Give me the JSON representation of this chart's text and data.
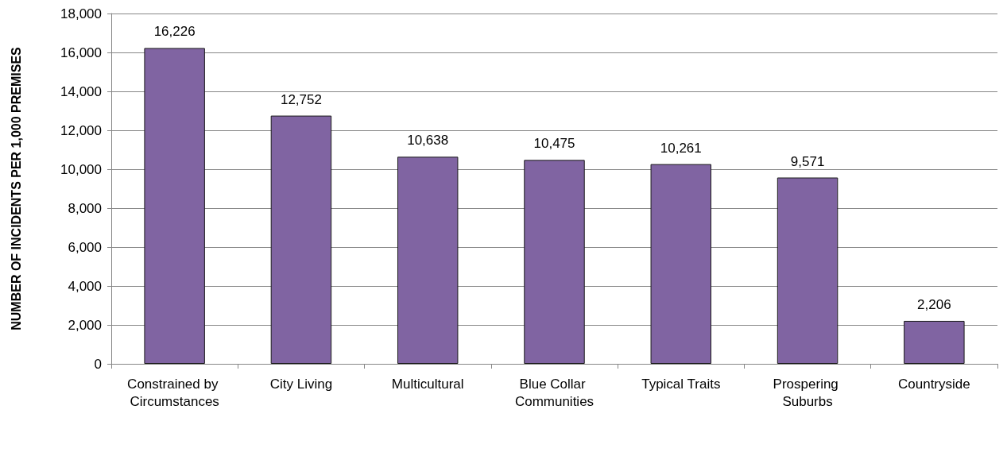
{
  "chart_data": {
    "type": "bar",
    "ylabel": "NUMBER OF INCIDENTS PER 1,000 PREMISES",
    "categories": [
      "Constrained by Circumstances",
      "City Living",
      "Multicultural",
      "Blue Collar Communities",
      "Typical Traits",
      "Prospering Suburbs",
      "Countryside"
    ],
    "values": [
      16226,
      12752,
      10638,
      10475,
      10261,
      9571,
      2206
    ],
    "value_labels": [
      "16,226",
      "12,752",
      "10,638",
      "10,475",
      "10,261",
      "9,571",
      "2,206"
    ],
    "color": "#8064a2",
    "ylim": [
      0,
      18000
    ],
    "yticks": [
      0,
      {
        "value": 2000,
        "label": "2,000"
      },
      {
        "value": 4000,
        "label": "4,000"
      },
      {
        "value": 6000,
        "label": "6,000"
      },
      {
        "value": 8000,
        "label": "8,000"
      },
      {
        "value": 10000,
        "label": "10,000"
      },
      {
        "value": 12000,
        "label": "12,000"
      },
      {
        "value": 14000,
        "label": "14,000"
      },
      {
        "value": 16000,
        "label": "16,000"
      },
      {
        "value": 18000,
        "label": "18,000"
      }
    ],
    "grid": "y"
  }
}
